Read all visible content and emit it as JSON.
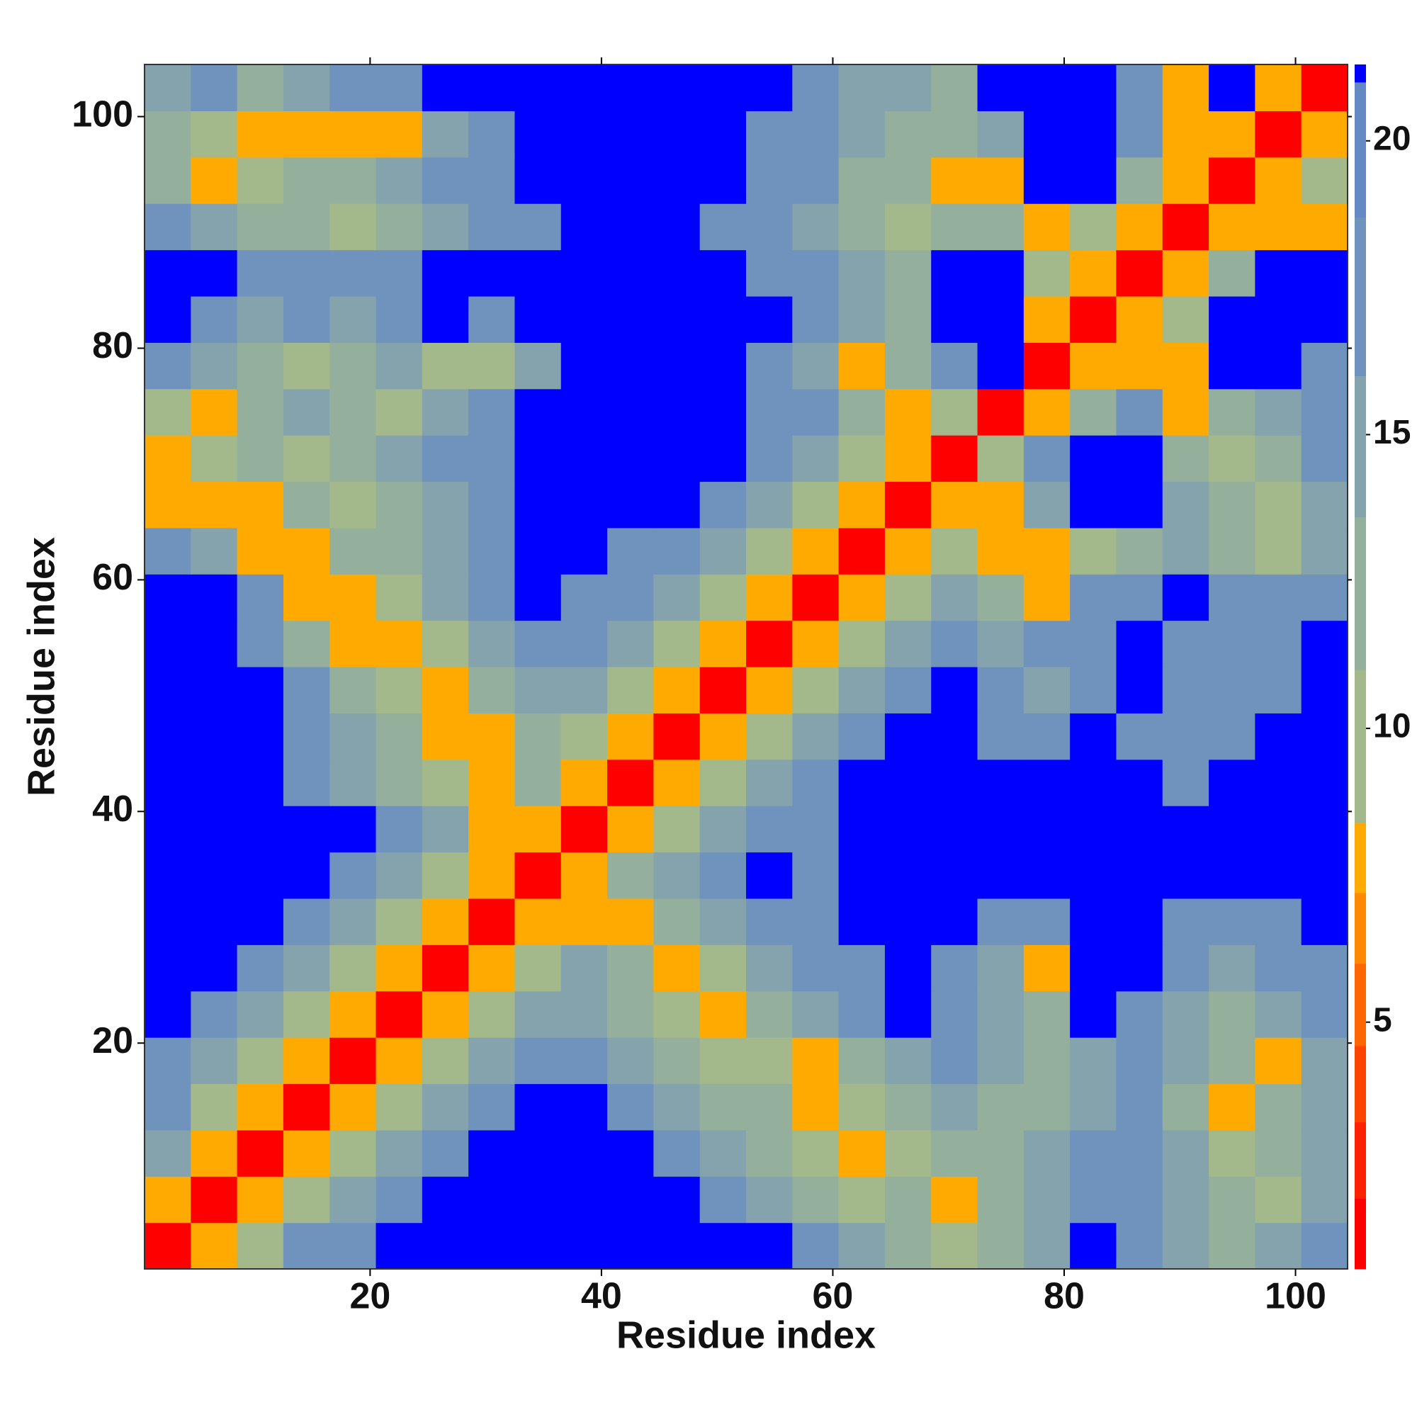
{
  "chart_data": {
    "type": "heatmap",
    "x_label": "Residue index",
    "y_label": "Residue index",
    "xlim": [
      0.5,
      104.5
    ],
    "ylim": [
      0.5,
      104.5
    ],
    "xticks": [
      20,
      40,
      60,
      80,
      100
    ],
    "yticks": [
      20,
      40,
      60,
      80,
      100
    ],
    "colorbar": {
      "levels": [
        0.8,
        2,
        3.3,
        4.6,
        6,
        7.2,
        8.4,
        11,
        13.6,
        16,
        18.7,
        21,
        21.3
      ],
      "colors": [
        "#ff0000",
        "#ff2200",
        "#ff4400",
        "#ff6600",
        "#ff8800",
        "#ffaa00",
        "#a3b98c",
        "#94b09c",
        "#84a3ad",
        "#6f93bd",
        "#6489c4",
        "#0000ff"
      ],
      "ticks": [
        5,
        10,
        15,
        20
      ]
    },
    "z": [
      [
        1.5,
        7.8,
        10,
        17.5,
        17.5,
        21.2,
        21.2,
        21.2,
        21.2,
        21.2,
        21.2,
        21.2,
        21.2,
        21.2,
        17.5,
        15,
        12.5,
        10,
        12.5,
        15,
        21.2,
        17.5,
        15,
        12.5,
        15,
        17.5
      ],
      [
        7.8,
        1.5,
        7.8,
        10,
        15,
        17.5,
        21.2,
        21.2,
        21.2,
        21.2,
        21.2,
        21.2,
        17.5,
        15,
        12.5,
        10,
        12.5,
        7.8,
        12.5,
        15,
        17.5,
        17.5,
        15,
        12.5,
        10,
        15
      ],
      [
        15,
        7.8,
        1.5,
        7.8,
        10,
        15,
        17.5,
        21.2,
        21.2,
        21.2,
        21.2,
        17.5,
        15,
        12.5,
        10,
        7.8,
        10,
        12.5,
        12.5,
        15,
        17.5,
        17.5,
        15,
        10,
        12.5,
        15
      ],
      [
        17.5,
        10,
        7.8,
        1.5,
        7.8,
        10,
        15,
        17.5,
        21.2,
        21.2,
        17.5,
        15,
        12.5,
        12.5,
        7.8,
        10,
        12.5,
        15,
        12.5,
        12.5,
        15,
        17.5,
        12.5,
        7.8,
        12.5,
        15
      ],
      [
        17.5,
        15,
        10,
        7.8,
        1.5,
        7.8,
        10,
        15,
        17.5,
        17.5,
        15,
        12.5,
        10,
        10,
        7.8,
        12.5,
        15,
        17.5,
        15,
        12.5,
        15,
        17.5,
        15,
        12.5,
        7.8,
        15
      ],
      [
        21.2,
        17.5,
        15,
        10,
        7.8,
        1.5,
        7.8,
        10,
        15,
        15,
        12.5,
        10,
        7.8,
        12.5,
        15,
        17.5,
        21.2,
        17.5,
        15,
        12.5,
        21.2,
        17.5,
        15,
        12.5,
        15,
        17.5
      ],
      [
        21.2,
        21.2,
        17.5,
        15,
        10,
        7.8,
        1.5,
        7.8,
        10,
        15,
        12.5,
        7.8,
        10,
        15,
        17.5,
        17.5,
        21.2,
        17.5,
        15,
        7.8,
        21.2,
        21.2,
        17.5,
        15,
        17.5,
        17.5
      ],
      [
        21.2,
        21.2,
        21.2,
        17.5,
        15,
        10,
        7.8,
        1.5,
        7.8,
        7.8,
        7.8,
        12.5,
        15,
        17.5,
        17.5,
        21.2,
        21.2,
        21.2,
        17.5,
        17.5,
        21.2,
        21.2,
        17.5,
        17.5,
        17.5,
        21.2
      ],
      [
        21.2,
        21.2,
        21.2,
        21.2,
        17.5,
        15,
        10,
        7.8,
        1.5,
        7.8,
        12.5,
        15,
        17.5,
        21.2,
        17.5,
        21.2,
        21.2,
        21.2,
        21.2,
        21.2,
        21.2,
        21.2,
        21.2,
        21.2,
        21.2,
        21.2
      ],
      [
        21.2,
        21.2,
        21.2,
        21.2,
        21.2,
        17.5,
        15,
        7.8,
        7.8,
        1.5,
        7.8,
        10,
        15,
        17.5,
        17.5,
        21.2,
        21.2,
        21.2,
        21.2,
        21.2,
        21.2,
        21.2,
        21.2,
        21.2,
        21.2,
        21.2
      ],
      [
        21.2,
        21.2,
        21.2,
        17.5,
        15,
        12.5,
        10,
        7.8,
        12.5,
        7.8,
        1.5,
        7.8,
        10,
        15,
        17.5,
        21.2,
        21.2,
        21.2,
        21.2,
        21.2,
        21.2,
        21.2,
        17.5,
        21.2,
        21.2,
        21.2
      ],
      [
        21.2,
        21.2,
        21.2,
        17.5,
        15,
        12.5,
        7.8,
        7.8,
        12.5,
        10,
        7.8,
        1.5,
        7.8,
        10,
        15,
        17.5,
        21.2,
        21.2,
        17.5,
        17.5,
        21.2,
        17.5,
        17.5,
        17.5,
        21.2,
        21.2
      ],
      [
        21.2,
        21.2,
        21.2,
        17.5,
        12.5,
        10,
        7.8,
        12.5,
        15,
        15,
        10,
        7.8,
        1.5,
        7.8,
        10,
        15,
        17.5,
        21.2,
        17.5,
        15,
        17.5,
        21.2,
        17.5,
        17.5,
        17.5,
        21.2
      ],
      [
        21.2,
        21.2,
        17.5,
        12.5,
        7.8,
        7.8,
        10,
        15,
        17.5,
        17.5,
        15,
        10,
        7.8,
        1.5,
        7.8,
        10,
        15,
        17.5,
        15,
        17.5,
        17.5,
        21.2,
        17.5,
        17.5,
        17.5,
        21.2
      ],
      [
        21.2,
        21.2,
        17.5,
        7.8,
        7.8,
        10,
        15,
        17.5,
        21.2,
        17.5,
        17.5,
        15,
        10,
        7.8,
        1.5,
        7.8,
        10,
        15,
        12.5,
        7.8,
        17.5,
        17.5,
        21.2,
        17.5,
        17.5,
        17.5
      ],
      [
        17.5,
        15,
        7.8,
        7.8,
        12.5,
        12.5,
        15,
        17.5,
        21.2,
        21.2,
        17.5,
        17.5,
        15,
        10,
        7.8,
        1.5,
        7.8,
        10,
        7.8,
        7.8,
        10,
        12.5,
        15,
        12.5,
        10,
        15
      ],
      [
        7.8,
        7.8,
        7.8,
        12.5,
        10,
        12.5,
        15,
        17.5,
        21.2,
        21.2,
        21.2,
        21.2,
        17.5,
        15,
        10,
        7.8,
        1.5,
        7.8,
        7.8,
        15,
        21.2,
        21.2,
        15,
        12.5,
        10,
        15
      ],
      [
        7.8,
        10,
        12.5,
        10,
        12.5,
        15,
        17.5,
        17.5,
        21.2,
        21.2,
        21.2,
        21.2,
        21.2,
        17.5,
        15,
        10,
        7.8,
        1.5,
        10,
        17.5,
        21.2,
        21.2,
        12.5,
        10,
        12.5,
        17.5
      ],
      [
        10,
        7.8,
        12.5,
        15,
        12.5,
        10,
        15,
        17.5,
        21.2,
        21.2,
        21.2,
        21.2,
        21.2,
        17.5,
        17.5,
        12.5,
        7.8,
        10,
        1.5,
        7.8,
        12.5,
        17.5,
        7.8,
        12.5,
        15,
        17.5
      ],
      [
        17.5,
        15,
        12.5,
        10,
        12.5,
        15,
        10,
        10,
        15,
        21.2,
        21.2,
        21.2,
        21.2,
        17.5,
        15,
        7.8,
        12.5,
        17.5,
        21.2,
        1.5,
        7.8,
        7.8,
        7.8,
        21.2,
        21.2,
        17.5
      ],
      [
        21.2,
        17.5,
        15,
        17.5,
        15,
        17.5,
        21.2,
        17.5,
        21.2,
        21.2,
        21.2,
        21.2,
        21.2,
        21.2,
        17.5,
        15,
        12.5,
        21.2,
        21.2,
        7.8,
        1.5,
        7.8,
        10,
        21.2,
        21.2,
        21.2
      ],
      [
        21.2,
        21.2,
        17.5,
        17.5,
        17.5,
        17.5,
        21.2,
        21.2,
        21.2,
        21.2,
        21.2,
        21.2,
        21.2,
        17.5,
        17.5,
        15,
        12.5,
        21.2,
        21.2,
        10,
        7.8,
        1.5,
        7.8,
        12.5,
        21.2,
        21.2
      ],
      [
        17.5,
        15,
        12.5,
        12.5,
        10,
        12.5,
        15,
        17.5,
        17.5,
        21.2,
        21.2,
        21.2,
        17.5,
        17.5,
        15,
        12.5,
        10,
        12.5,
        12.5,
        7.8,
        10,
        7.8,
        1.5,
        7.8,
        7.8,
        7.8
      ],
      [
        12.5,
        7.8,
        10,
        12.5,
        12.5,
        15,
        17.5,
        17.5,
        21.2,
        21.2,
        21.2,
        21.2,
        21.2,
        17.5,
        17.5,
        12.5,
        12.5,
        7.8,
        7.8,
        21.2,
        21.2,
        12.5,
        7.8,
        1.5,
        7.8,
        10
      ],
      [
        12.5,
        10,
        7.8,
        7.8,
        7.8,
        7.8,
        15,
        17.5,
        21.2,
        21.2,
        21.2,
        21.2,
        21.2,
        17.5,
        17.5,
        15,
        12.5,
        12.5,
        15,
        21.2,
        21.2,
        17.5,
        7.8,
        7.8,
        1.5,
        7.8
      ],
      [
        15,
        17.5,
        12.5,
        15,
        17.5,
        17.5,
        21.2,
        21.2,
        21.2,
        21.2,
        21.2,
        21.2,
        21.2,
        21.2,
        17.5,
        15,
        15,
        12.5,
        21.2,
        21.2,
        21.2,
        17.5,
        7.8,
        21.2,
        7.8,
        1.5
      ]
    ]
  }
}
